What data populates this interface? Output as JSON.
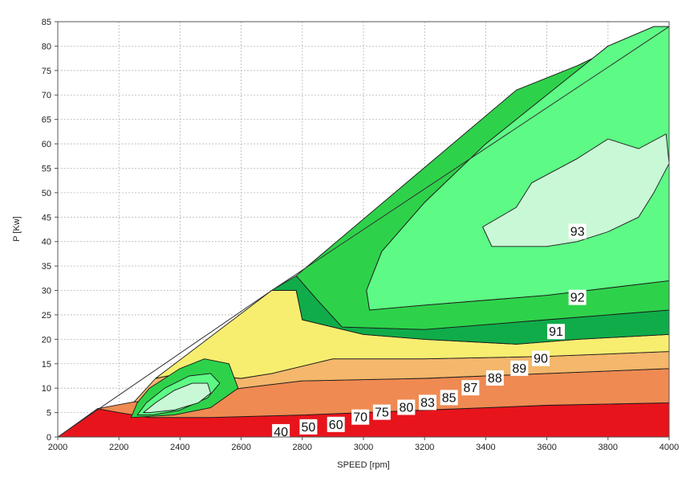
{
  "chart_data": {
    "type": "contour",
    "xlabel": "SPEED [rpm]",
    "ylabel": "P [Kw]",
    "xlim": [
      2000,
      4000
    ],
    "ylim": [
      0,
      85
    ],
    "x_ticks": [
      2000,
      2200,
      2400,
      2600,
      2800,
      3000,
      3200,
      3400,
      3600,
      3800,
      4000
    ],
    "y_ticks": [
      0,
      5,
      10,
      15,
      20,
      25,
      30,
      35,
      40,
      45,
      50,
      55,
      60,
      65,
      70,
      75,
      80,
      85
    ],
    "grid": true,
    "envelope": [
      [
        2000,
        0
      ],
      [
        2700,
        30
      ],
      [
        4000,
        84
      ]
    ],
    "colors": {
      "red": "#e8141c",
      "orange": "#ef8a52",
      "light_orange": "#f4b76b",
      "yellow": "#f7ee70",
      "green": "#2ed24a",
      "dark_green": "#10ac4a",
      "light_green": "#5dfa85",
      "pale_green": "#c9f8d6"
    },
    "regions": [
      {
        "fill": "red",
        "points": [
          [
            2000,
            0
          ],
          [
            4000,
            0
          ],
          [
            4000,
            7
          ],
          [
            3600,
            6.5
          ],
          [
            3200,
            5.5
          ],
          [
            2800,
            4.5
          ],
          [
            2500,
            4
          ],
          [
            2300,
            4
          ],
          [
            2200,
            5
          ],
          [
            2130,
            5.8
          ]
        ]
      },
      {
        "fill": "orange",
        "points": [
          [
            2130,
            5.8
          ],
          [
            2200,
            5
          ],
          [
            2300,
            4
          ],
          [
            2500,
            4
          ],
          [
            2800,
            4.5
          ],
          [
            3200,
            5.5
          ],
          [
            3600,
            6.5
          ],
          [
            4000,
            7
          ],
          [
            4000,
            14
          ],
          [
            3600,
            13
          ],
          [
            3200,
            12
          ],
          [
            2800,
            11.5
          ],
          [
            2600,
            10
          ],
          [
            2400,
            7.5
          ],
          [
            2250,
            7.2
          ]
        ]
      },
      {
        "fill": "light_orange",
        "points": [
          [
            2250,
            7.2
          ],
          [
            2400,
            7.5
          ],
          [
            2600,
            10
          ],
          [
            2800,
            11.5
          ],
          [
            3200,
            12
          ],
          [
            3600,
            13
          ],
          [
            4000,
            14
          ],
          [
            4000,
            17.5
          ],
          [
            3600,
            16.5
          ],
          [
            3200,
            16
          ],
          [
            2900,
            16
          ],
          [
            2700,
            13
          ],
          [
            2600,
            12
          ],
          [
            2400,
            13
          ],
          [
            2320,
            12
          ]
        ]
      },
      {
        "fill": "yellow",
        "points": [
          [
            2320,
            12
          ],
          [
            2400,
            13
          ],
          [
            2600,
            12
          ],
          [
            2700,
            13
          ],
          [
            2900,
            16
          ],
          [
            3200,
            16
          ],
          [
            3600,
            16.5
          ],
          [
            4000,
            17.5
          ],
          [
            4000,
            21
          ],
          [
            3700,
            20
          ],
          [
            3500,
            19
          ],
          [
            3200,
            20
          ],
          [
            3000,
            21
          ],
          [
            2800,
            24
          ],
          [
            2780,
            30
          ],
          [
            2700,
            30
          ]
        ]
      },
      {
        "fill": "dark_green",
        "points": [
          [
            2700,
            30
          ],
          [
            2780,
            30
          ],
          [
            2800,
            24
          ],
          [
            3000,
            21
          ],
          [
            3200,
            20
          ],
          [
            3500,
            19
          ],
          [
            3700,
            20
          ],
          [
            4000,
            21
          ],
          [
            4000,
            26
          ],
          [
            3600,
            24
          ],
          [
            3200,
            22
          ],
          [
            2930,
            22.5
          ],
          [
            2850,
            28
          ],
          [
            2780,
            33
          ]
        ]
      },
      {
        "fill": "green",
        "points": [
          [
            2780,
            33
          ],
          [
            2850,
            28
          ],
          [
            2930,
            22.5
          ],
          [
            3200,
            22
          ],
          [
            3600,
            24
          ],
          [
            4000,
            26
          ],
          [
            4000,
            32
          ],
          [
            3600,
            29
          ],
          [
            3200,
            27
          ],
          [
            3020,
            26
          ],
          [
            3010,
            30
          ],
          [
            3060,
            38
          ],
          [
            3200,
            48
          ],
          [
            3400,
            60
          ],
          [
            3600,
            70
          ],
          [
            3800,
            80
          ],
          [
            3950,
            84
          ],
          [
            4000,
            84
          ],
          [
            3900,
            82
          ],
          [
            3700,
            76
          ],
          [
            3500,
            71
          ]
        ]
      },
      {
        "fill": "light_green",
        "points": [
          [
            3010,
            30
          ],
          [
            3020,
            26
          ],
          [
            3200,
            27
          ],
          [
            3600,
            29
          ],
          [
            4000,
            32
          ],
          [
            4000,
            84
          ],
          [
            3950,
            84
          ],
          [
            3800,
            80
          ],
          [
            3600,
            70
          ],
          [
            3400,
            60
          ],
          [
            3200,
            48
          ],
          [
            3060,
            38
          ]
        ]
      },
      {
        "fill": "pale_green",
        "points": [
          [
            3390,
            43
          ],
          [
            3500,
            47
          ],
          [
            3550,
            52
          ],
          [
            3700,
            57
          ],
          [
            3800,
            61
          ],
          [
            3900,
            59
          ],
          [
            3990,
            62
          ],
          [
            4000,
            56
          ],
          [
            3950,
            50
          ],
          [
            3900,
            45
          ],
          [
            3800,
            42
          ],
          [
            3700,
            40
          ],
          [
            3600,
            39
          ],
          [
            3420,
            39
          ]
        ]
      },
      {
        "fill": "green",
        "points": [
          [
            2240,
            4
          ],
          [
            2260,
            7
          ],
          [
            2300,
            10
          ],
          [
            2400,
            14
          ],
          [
            2480,
            16
          ],
          [
            2560,
            15
          ],
          [
            2590,
            10
          ],
          [
            2500,
            6
          ],
          [
            2380,
            4.5
          ]
        ]
      },
      {
        "fill": "light_green",
        "points": [
          [
            2260,
            4.5
          ],
          [
            2290,
            7
          ],
          [
            2350,
            10
          ],
          [
            2430,
            12.5
          ],
          [
            2500,
            13
          ],
          [
            2530,
            11
          ],
          [
            2490,
            8
          ],
          [
            2400,
            5.5
          ],
          [
            2310,
            4.5
          ]
        ]
      },
      {
        "fill": "pale_green",
        "points": [
          [
            2280,
            5
          ],
          [
            2320,
            7
          ],
          [
            2380,
            9.5
          ],
          [
            2440,
            11
          ],
          [
            2490,
            11
          ],
          [
            2500,
            9
          ],
          [
            2460,
            7
          ],
          [
            2380,
            5.5
          ],
          [
            2300,
            5
          ]
        ]
      }
    ],
    "contour_labels": [
      {
        "text": "40",
        "x": 2730,
        "y": 1
      },
      {
        "text": "50",
        "x": 2820,
        "y": 2
      },
      {
        "text": "60",
        "x": 2910,
        "y": 2.5
      },
      {
        "text": "70",
        "x": 2990,
        "y": 4
      },
      {
        "text": "75",
        "x": 3060,
        "y": 5
      },
      {
        "text": "80",
        "x": 3140,
        "y": 6
      },
      {
        "text": "83",
        "x": 3210,
        "y": 7
      },
      {
        "text": "85",
        "x": 3280,
        "y": 8
      },
      {
        "text": "87",
        "x": 3350,
        "y": 10
      },
      {
        "text": "88",
        "x": 3430,
        "y": 12
      },
      {
        "text": "89",
        "x": 3510,
        "y": 14
      },
      {
        "text": "90",
        "x": 3580,
        "y": 16
      },
      {
        "text": "91",
        "x": 3630,
        "y": 21.5
      },
      {
        "text": "92",
        "x": 3700,
        "y": 28.5
      },
      {
        "text": "93",
        "x": 3700,
        "y": 42
      }
    ]
  }
}
